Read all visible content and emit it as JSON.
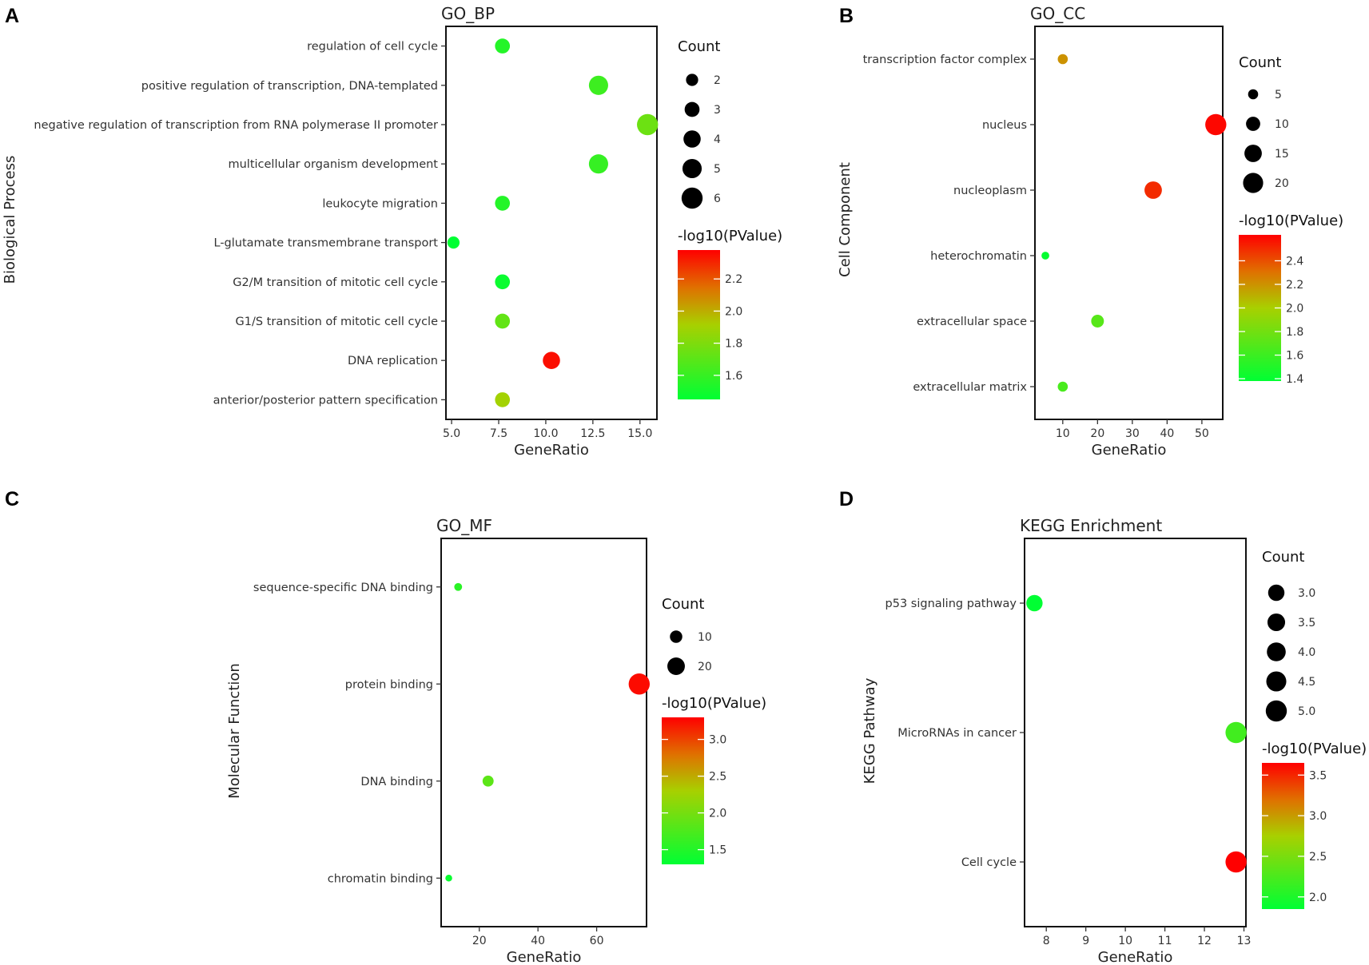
{
  "chart_data": [
    {
      "panel": "A",
      "type": "scatter",
      "title": "GO_BP",
      "xlabel": "GeneRatio",
      "ylabel": "Biological Process",
      "xlim": [
        4.7,
        15.9
      ],
      "xticks": [
        5.0,
        7.5,
        10.0,
        12.5,
        15.0
      ],
      "xtick_labels": [
        "5.0",
        "7.5",
        "10.0",
        "12.5",
        "15.0"
      ],
      "categories": [
        "regulation of cell cycle",
        "positive regulation of transcription, DNA-templated",
        "negative regulation of transcription from RNA polymerase II promoter",
        "multicellular organism development",
        "leukocyte migration",
        "L-glutamate transmembrane transport",
        "G2/M transition of mitotic cell cycle",
        "G1/S transition of mitotic cell cycle",
        "DNA replication",
        "anterior/posterior pattern specification"
      ],
      "gene_ratio": [
        7.7,
        12.8,
        15.4,
        12.8,
        7.7,
        5.1,
        7.7,
        7.7,
        10.3,
        7.7
      ],
      "count": [
        3,
        5,
        6,
        5,
        3,
        2,
        3,
        3,
        4,
        3
      ],
      "neg_log10_p": [
        1.55,
        1.62,
        1.75,
        1.6,
        1.55,
        1.45,
        1.48,
        1.72,
        2.35,
        1.9
      ],
      "size_legend": {
        "title": "Count",
        "values": [
          2,
          3,
          4,
          5,
          6
        ],
        "labels": [
          "2",
          "3",
          "4",
          "5",
          "6"
        ]
      },
      "color_legend": {
        "title": "-log10(PValue)",
        "min": 1.45,
        "max": 2.38,
        "ticks": [
          1.6,
          1.8,
          2.0,
          2.2
        ],
        "labels": [
          "1.6",
          "1.8",
          "2.0",
          "2.2"
        ]
      }
    },
    {
      "panel": "B",
      "type": "scatter",
      "title": "GO_CC",
      "xlabel": "GeneRatio",
      "ylabel": "Cell Component",
      "xlim": [
        2,
        56
      ],
      "xticks": [
        10,
        20,
        30,
        40,
        50
      ],
      "xtick_labels": [
        "10",
        "20",
        "30",
        "40",
        "50"
      ],
      "categories": [
        "transcription factor complex",
        "nucleus",
        "nucleoplasm",
        "heterochromatin",
        "extracellular space",
        "extracellular matrix"
      ],
      "gene_ratio": [
        10,
        54,
        36,
        5,
        20,
        10
      ],
      "count": [
        5,
        22,
        15,
        3,
        8,
        5
      ],
      "neg_log10_p": [
        2.2,
        2.6,
        2.5,
        1.4,
        1.7,
        1.65
      ],
      "size_legend": {
        "title": "Count",
        "values": [
          5,
          10,
          15,
          20
        ],
        "labels": [
          "5",
          "10",
          "15",
          "20"
        ]
      },
      "color_legend": {
        "title": "-log10(PValue)",
        "min": 1.38,
        "max": 2.62,
        "ticks": [
          1.4,
          1.6,
          1.8,
          2.0,
          2.2,
          2.4
        ],
        "labels": [
          "1.4",
          "1.6",
          "1.8",
          "2.0",
          "2.2",
          "2.4"
        ]
      }
    },
    {
      "panel": "C",
      "type": "scatter",
      "title": "GO_MF",
      "xlabel": "GeneRatio",
      "ylabel": "Molecular Function",
      "xlim": [
        7,
        77
      ],
      "xticks": [
        20,
        40,
        60
      ],
      "xtick_labels": [
        "20",
        "40",
        "60"
      ],
      "categories": [
        "sequence-specific DNA binding",
        "protein binding",
        "DNA binding",
        "chromatin binding"
      ],
      "gene_ratio": [
        12.8,
        74.5,
        23,
        9.6
      ],
      "count": [
        4,
        29,
        8,
        3
      ],
      "neg_log10_p": [
        1.55,
        3.25,
        1.85,
        1.35
      ],
      "size_legend": {
        "title": "Count",
        "values": [
          10,
          20
        ],
        "labels": [
          "10",
          "20"
        ]
      },
      "color_legend": {
        "title": "-log10(PValue)",
        "min": 1.3,
        "max": 3.3,
        "ticks": [
          1.5,
          2.0,
          2.5,
          3.0
        ],
        "labels": [
          "1.5",
          "2.0",
          "2.5",
          "3.0"
        ]
      }
    },
    {
      "panel": "D",
      "type": "scatter",
      "title": "KEGG Enrichment",
      "xlabel": "GeneRatio",
      "ylabel": "KEGG Pathway",
      "xlim": [
        7.45,
        13.05
      ],
      "xticks": [
        8,
        9,
        10,
        11,
        12,
        13
      ],
      "xtick_labels": [
        "8",
        "9",
        "10",
        "11",
        "12",
        "13"
      ],
      "categories": [
        "p53 signaling pathway",
        "MicroRNAs in cancer",
        "Cell cycle"
      ],
      "gene_ratio": [
        7.7,
        12.8,
        12.8
      ],
      "count": [
        3,
        5,
        5
      ],
      "neg_log10_p": [
        1.85,
        2.2,
        3.65
      ],
      "size_legend": {
        "title": "Count",
        "values": [
          3.0,
          3.5,
          4.0,
          4.5,
          5.0
        ],
        "labels": [
          "3.0",
          "3.5",
          "4.0",
          "4.5",
          "5.0"
        ]
      },
      "color_legend": {
        "title": "-log10(PValue)",
        "min": 1.85,
        "max": 3.65,
        "ticks": [
          2.0,
          2.5,
          3.0,
          3.5
        ],
        "labels": [
          "2.0",
          "2.5",
          "3.0",
          "3.5"
        ]
      }
    }
  ],
  "colors": {
    "low": "#00ff33",
    "mid": "#a8d000",
    "high": "#ff0000",
    "frame": "#111111"
  }
}
